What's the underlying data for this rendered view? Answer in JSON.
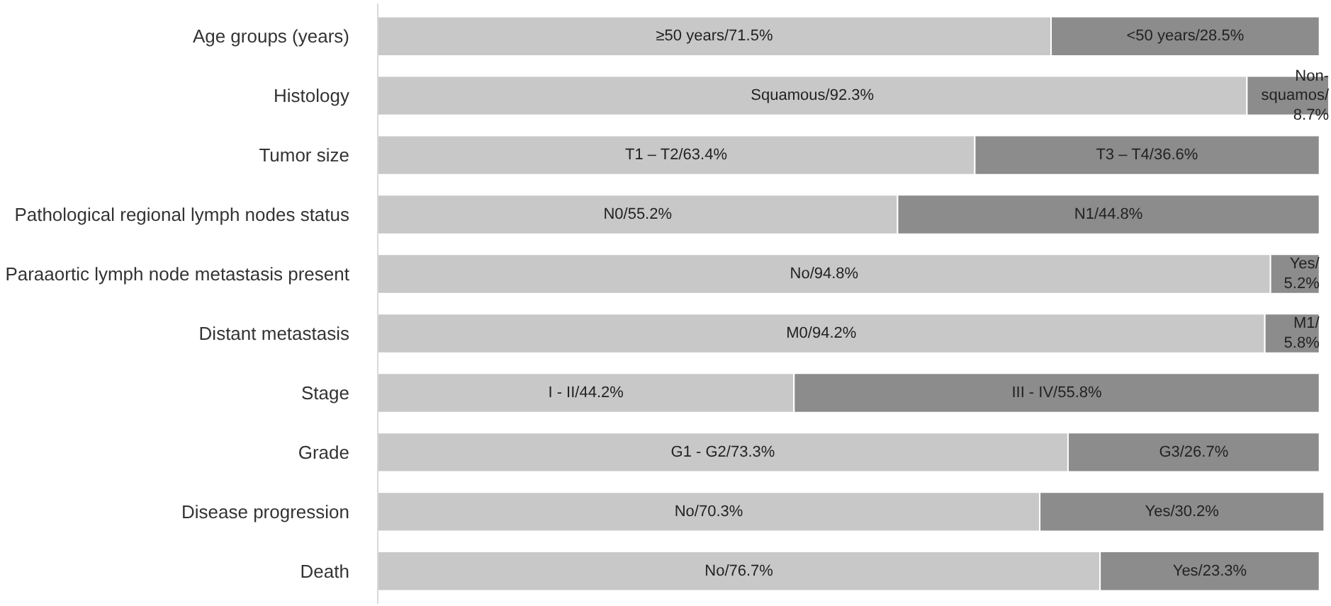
{
  "chart_data": {
    "type": "bar",
    "orientation": "horizontal",
    "stacked": true,
    "categories": [
      "Age groups (years)",
      "Histology",
      "Tumor size",
      "Pathological regional lymph nodes status",
      "Paraaortic lymph node metastasis present",
      "Distant metastasis",
      "Stage",
      "Grade",
      "Disease progression",
      "Death"
    ],
    "series": [
      {
        "color": "#c8c8c8",
        "values": [
          71.5,
          92.3,
          63.4,
          55.2,
          94.8,
          94.2,
          44.2,
          73.3,
          70.3,
          76.7
        ],
        "value_labels": [
          "≥50 years/71.5%",
          "Squamous/92.3%",
          "T1 – T2/63.4%",
          "N0/55.2%",
          "No/94.8%",
          "M0/94.2%",
          "I - II/44.2%",
          "G1 - G2/73.3%",
          "No/70.3%",
          "No/76.7%"
        ]
      },
      {
        "color": "#8c8c8c",
        "values": [
          28.5,
          8.7,
          36.6,
          44.8,
          5.2,
          5.8,
          55.8,
          26.7,
          30.2,
          23.3
        ],
        "value_labels": [
          "<50 years/28.5%",
          "Non-squamos/8.7%",
          "T3 – T4/36.6%",
          "N1/44.8%",
          "Yes/5.2%",
          "M1/5.8%",
          "III - IV/55.8%",
          "G3/26.7%",
          "Yes/30.2%",
          "Yes/23.3%"
        ]
      }
    ],
    "grid": false
  }
}
